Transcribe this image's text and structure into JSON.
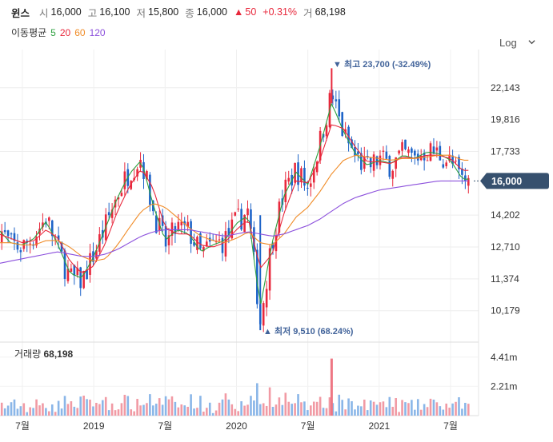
{
  "header": {
    "name": "윈스",
    "open_label": "시",
    "open": "16,000",
    "high_label": "고",
    "high": "16,100",
    "low_label": "저",
    "low": "15,800",
    "close_label": "종",
    "close": "16,000",
    "change_arrow": "▲",
    "change": "50",
    "change_pct": "+0.31%",
    "volume_label": "거",
    "volume": "68,198"
  },
  "ma_legend": {
    "label": "이동평균",
    "items": [
      {
        "text": "5",
        "color": "#2ea040"
      },
      {
        "text": "20",
        "color": "#e8283c"
      },
      {
        "text": "60",
        "color": "#f08c28"
      },
      {
        "text": "120",
        "color": "#8c50dc"
      }
    ]
  },
  "scale_selector": {
    "label": "Log",
    "icon": "chevron-down-icon"
  },
  "colors": {
    "up": "#e8283c",
    "down": "#1e64c8",
    "badge": "#36506e",
    "volume_up": "#f19aa4",
    "volume_down": "#8ab6e8"
  },
  "chart_data": {
    "type": "candlestick",
    "scale": "log",
    "y_ticks": [
      "22,143",
      "19,816",
      "17,733",
      "14,202",
      "12,710",
      "11,374",
      "10,179"
    ],
    "y_tick_values": [
      22143,
      19816,
      17733,
      14202,
      12710,
      11374,
      10179
    ],
    "ylim": [
      9200,
      24600
    ],
    "x_ticks": [
      "7월",
      "2019",
      "7월",
      "2020",
      "7월",
      "2021",
      "7월"
    ],
    "x_tick_dates": [
      "2018-07",
      "2019-01",
      "2019-07",
      "2020-01",
      "2020-07",
      "2021-01",
      "2021-07"
    ],
    "current_price_label": "16,000",
    "current_price": 16000,
    "max_marker": {
      "text": "▼ 최고 23,700 (-32.49%)",
      "value": 23700,
      "date": "2020-09"
    },
    "min_marker": {
      "text": "▲ 최저 9,510 (68.24%)",
      "value": 9510,
      "date": "2020-03"
    },
    "close_path_dates": [
      "2018-05",
      "2018-06",
      "2018-07",
      "2018-08",
      "2018-09",
      "2018-10",
      "2018-11",
      "2018-12",
      "2019-01",
      "2019-02",
      "2019-03",
      "2019-04",
      "2019-05",
      "2019-06",
      "2019-07",
      "2019-08",
      "2019-09",
      "2019-10",
      "2019-11",
      "2019-12",
      "2020-01",
      "2020-02",
      "2020-03",
      "2020-04",
      "2020-05",
      "2020-06",
      "2020-07",
      "2020-08",
      "2020-09",
      "2020-10",
      "2020-11",
      "2020-12",
      "2021-01",
      "2021-02",
      "2021-03",
      "2021-04",
      "2021-05",
      "2021-06",
      "2021-07",
      "2021-08"
    ],
    "close_path_values": [
      13600,
      12800,
      12700,
      13200,
      14100,
      12600,
      11400,
      11300,
      12400,
      13700,
      15300,
      16600,
      17400,
      14400,
      12800,
      13600,
      13400,
      12400,
      12800,
      13000,
      13900,
      14400,
      9800,
      13100,
      15400,
      16700,
      15600,
      18300,
      21700,
      18800,
      17400,
      16700,
      17300,
      16900,
      17600,
      17300,
      17800,
      17600,
      17100,
      16000
    ],
    "moving_averages": [
      {
        "period": "5",
        "values": [
          13500,
          12900,
          12800,
          13100,
          13900,
          12800,
          11600,
          11400,
          12300,
          13600,
          15100,
          16400,
          17200,
          14700,
          13000,
          13500,
          13300,
          12500,
          12800,
          13000,
          13800,
          14200,
          10300,
          12900,
          15200,
          16500,
          15800,
          18000,
          21000,
          19000,
          17600,
          16900,
          17200,
          17000,
          17500,
          17300,
          17700,
          17600,
          17200,
          16100
        ]
      },
      {
        "period": "20",
        "values": [
          13300,
          13100,
          12900,
          13000,
          13500,
          13100,
          12100,
          11600,
          11900,
          12900,
          14400,
          15700,
          16700,
          15600,
          13600,
          13300,
          13300,
          12800,
          12700,
          12900,
          13500,
          14000,
          11800,
          12400,
          14300,
          16000,
          15900,
          17200,
          19500,
          19200,
          18000,
          17100,
          17100,
          17000,
          17400,
          17300,
          17500,
          17500,
          17300,
          16600
        ]
      },
      {
        "period": "60",
        "values": [
          12900,
          12900,
          12800,
          12800,
          13000,
          13000,
          12700,
          12300,
          12100,
          12200,
          12800,
          13600,
          14400,
          14800,
          14600,
          14100,
          13600,
          13200,
          13000,
          12900,
          13100,
          13400,
          12900,
          12800,
          13300,
          14100,
          14600,
          15400,
          16400,
          17200,
          17500,
          17400,
          17300,
          17200,
          17300,
          17300,
          17400,
          17500,
          17500,
          17200
        ]
      },
      {
        "period": "120",
        "values": [
          12000,
          12100,
          12200,
          12300,
          12400,
          12500,
          12400,
          12300,
          12300,
          12400,
          12600,
          12900,
          13200,
          13400,
          13500,
          13500,
          13500,
          13400,
          13300,
          13200,
          13300,
          13400,
          13300,
          13200,
          13300,
          13500,
          13700,
          14000,
          14400,
          14800,
          15100,
          15300,
          15500,
          15600,
          15700,
          15800,
          15900,
          16000,
          16000,
          16000
        ]
      }
    ],
    "volume": {
      "label": "거래량",
      "value": "68,198",
      "y_ticks": [
        "4.41m",
        "2.21m"
      ],
      "y_tick_values": [
        4410000,
        2210000
      ],
      "ymax": 5300000,
      "peak_date": "2020-09",
      "peak_value": 4300000
    }
  }
}
